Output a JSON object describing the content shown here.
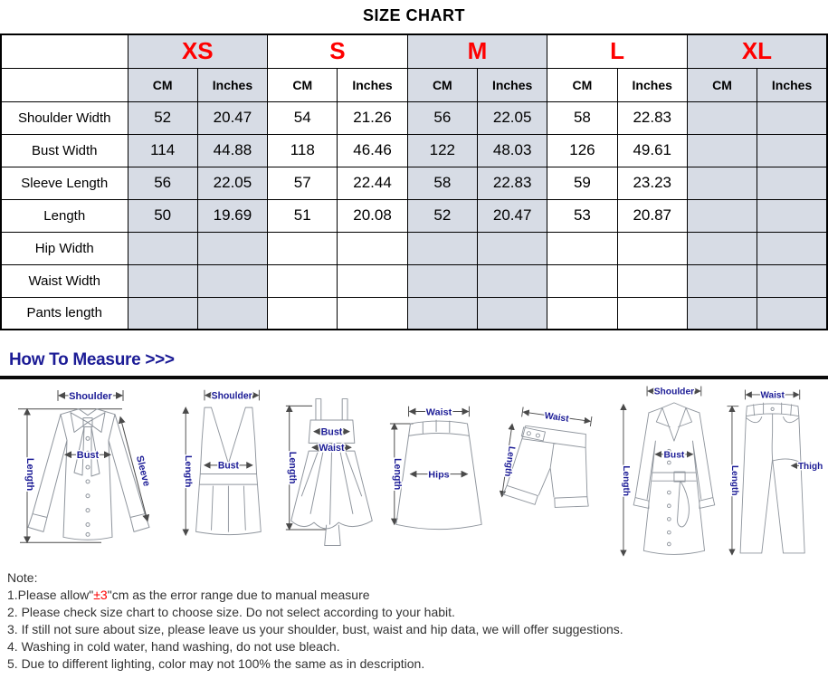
{
  "title": "SIZE CHART",
  "size_table": {
    "sizes": [
      "XS",
      "S",
      "M",
      "L",
      "XL"
    ],
    "unit_headers": [
      "CM",
      "Inches"
    ],
    "rows": [
      {
        "label": "Shoulder Width",
        "values": [
          "52",
          "20.47",
          "54",
          "21.26",
          "56",
          "22.05",
          "58",
          "22.83",
          "",
          ""
        ]
      },
      {
        "label": "Bust Width",
        "values": [
          "114",
          "44.88",
          "118",
          "46.46",
          "122",
          "48.03",
          "126",
          "49.61",
          "",
          ""
        ]
      },
      {
        "label": "Sleeve Length",
        "values": [
          "56",
          "22.05",
          "57",
          "22.44",
          "58",
          "22.83",
          "59",
          "23.23",
          "",
          ""
        ]
      },
      {
        "label": "Length",
        "values": [
          "50",
          "19.69",
          "51",
          "20.08",
          "52",
          "20.47",
          "53",
          "20.87",
          "",
          ""
        ]
      },
      {
        "label": "Hip Width",
        "values": [
          "",
          "",
          "",
          "",
          "",
          "",
          "",
          "",
          "",
          ""
        ]
      },
      {
        "label": "Waist Width",
        "values": [
          "",
          "",
          "",
          "",
          "",
          "",
          "",
          "",
          "",
          ""
        ]
      },
      {
        "label": "Pants length",
        "values": [
          "",
          "",
          "",
          "",
          "",
          "",
          "",
          "",
          "",
          ""
        ]
      }
    ]
  },
  "measure": {
    "heading": "How To Measure >>>",
    "figures": [
      {
        "name": "blouse",
        "labels": {
          "shoulder": "Shoulder",
          "length": "Length",
          "bust": "Bust",
          "sleeve": "Sleeve"
        }
      },
      {
        "name": "tank-top",
        "labels": {
          "shoulder": "Shoulder",
          "length": "Length",
          "bust": "Bust"
        }
      },
      {
        "name": "dress",
        "labels": {
          "bust": "Bust",
          "waist": "Waist",
          "length": "Length"
        }
      },
      {
        "name": "skirt",
        "labels": {
          "waist": "Waist",
          "length": "Length",
          "hips": "Hips"
        }
      },
      {
        "name": "shorts",
        "labels": {
          "waist": "Waist",
          "length": "Length"
        }
      },
      {
        "name": "coat",
        "labels": {
          "shoulder": "Shoulder",
          "length": "Length",
          "bust": "Bust"
        }
      },
      {
        "name": "pants",
        "labels": {
          "waist": "Waist",
          "length": "Length",
          "thigh": "Thigh"
        }
      }
    ]
  },
  "notes": {
    "heading": "Note:",
    "items": [
      {
        "parts": [
          {
            "text": "1.Please allow\""
          },
          {
            "text": "±3",
            "color": "#fe0000"
          },
          {
            "text": "\"cm as the error range due to manual measure"
          }
        ]
      },
      {
        "parts": [
          {
            "text": "2. Please check size chart to choose size. Do not select according to your habit."
          }
        ]
      },
      {
        "parts": [
          {
            "text": "3. If still not sure about size, please leave us your shoulder, bust, waist and hip data, we will offer suggestions."
          }
        ]
      },
      {
        "parts": [
          {
            "text": "4. Washing in cold water, hand washing, do not use bleach."
          }
        ]
      },
      {
        "parts": [
          {
            "text": "5. Due to different lighting, color may not 100% the same as in description."
          }
        ]
      }
    ]
  },
  "colors": {
    "size_text": "#fe0000",
    "shaded_column": "#d7dce5",
    "measure_heading": "#1c1c96",
    "figure_label": "#1c1c96",
    "line_art": "#8f959d"
  }
}
